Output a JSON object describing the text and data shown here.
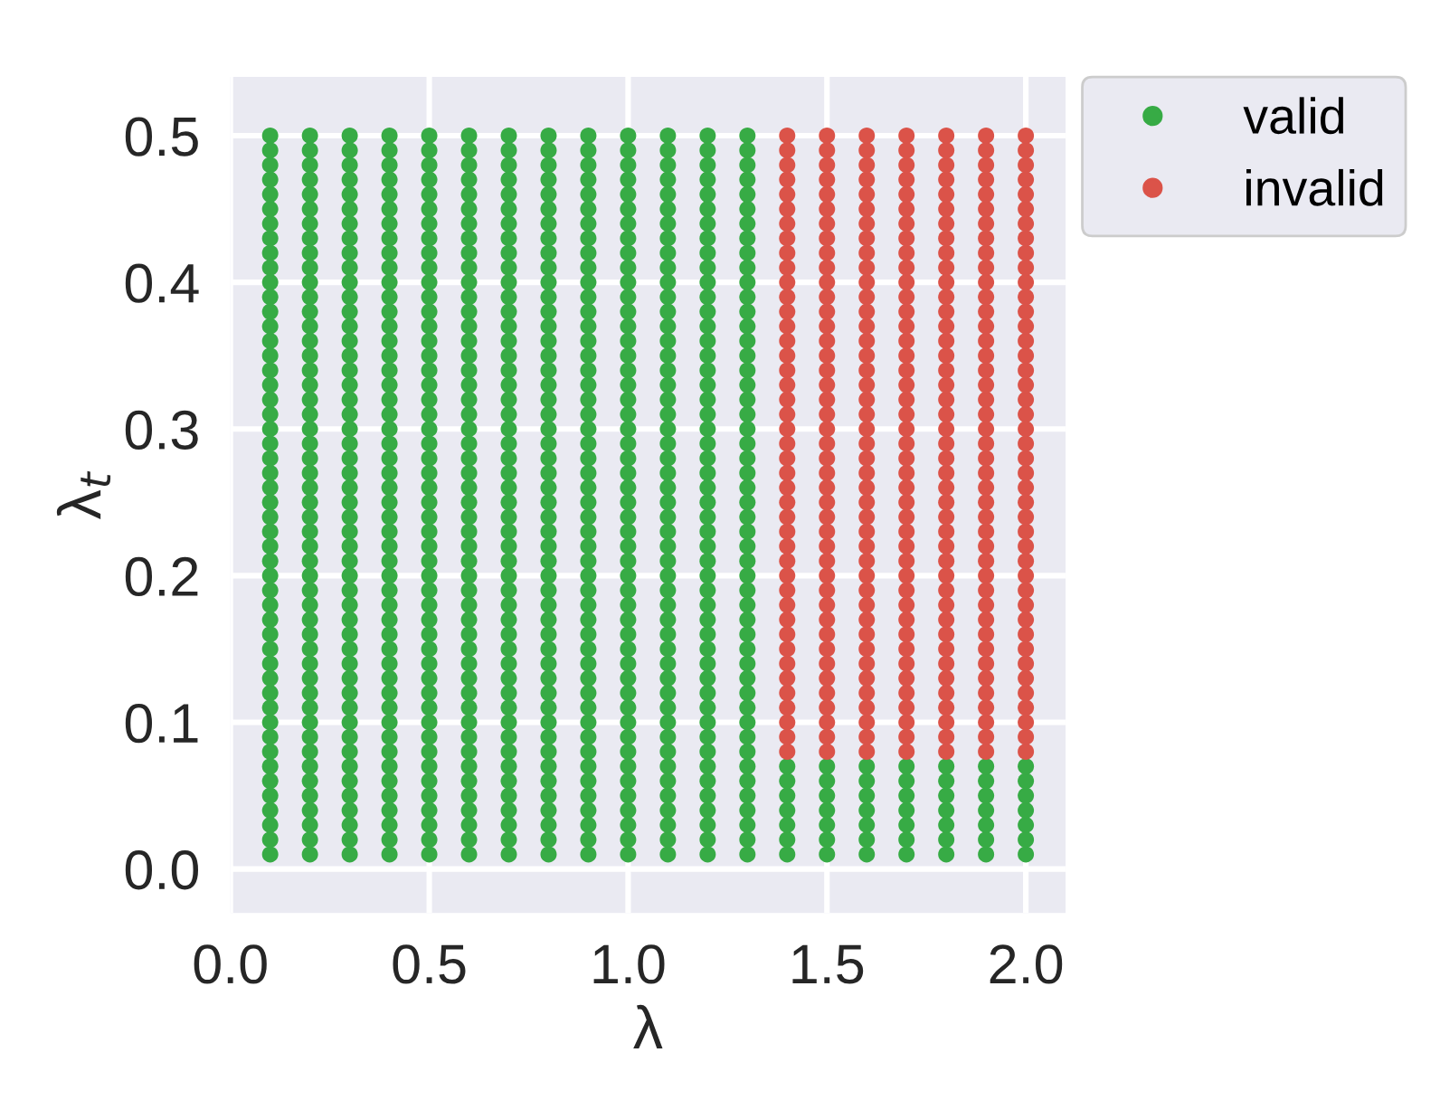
{
  "chart_data": {
    "type": "scatter",
    "xlabel": "λ",
    "ylabel": "λ$_{t}$",
    "xlim": [
      0.0,
      2.1
    ],
    "ylim": [
      -0.03,
      0.54
    ],
    "xticks": [
      {
        "value": 0,
        "label": "0.0"
      },
      0.5,
      {
        "value": 1,
        "label": "1.0"
      },
      1.5,
      {
        "value": 2,
        "label": "2.0"
      }
    ],
    "yticks": [
      {
        "value": 0,
        "label": "0.0"
      },
      0.1,
      0.2,
      0.3,
      0.4,
      0.5
    ],
    "grid": true,
    "legend": "right",
    "marker": "circle",
    "series": [
      {
        "name": "valid",
        "color": "#37ab45",
        "x": [
          0.1,
          0.1,
          0.1,
          0.1,
          0.1,
          0.1,
          0.1,
          0.1,
          0.1,
          0.1,
          0.1,
          0.1,
          0.1,
          0.1,
          0.1,
          0.1,
          0.1,
          0.1,
          0.1,
          0.1,
          0.1,
          0.1,
          0.1,
          0.1,
          0.1,
          0.1,
          0.1,
          0.1,
          0.1,
          0.1,
          0.1,
          0.1,
          0.1,
          0.1,
          0.1,
          0.1,
          0.1,
          0.1,
          0.1,
          0.1,
          0.1,
          0.1,
          0.1,
          0.1,
          0.1,
          0.1,
          0.1,
          0.1,
          0.1,
          0.1,
          0.2,
          0.2,
          0.2,
          0.2,
          0.2,
          0.2,
          0.2,
          0.2,
          0.2,
          0.2,
          0.2,
          0.2,
          0.2,
          0.2,
          0.2,
          0.2,
          0.2,
          0.2,
          0.2,
          0.2,
          0.2,
          0.2,
          0.2,
          0.2,
          0.2,
          0.2,
          0.2,
          0.2,
          0.2,
          0.2,
          0.2,
          0.2,
          0.2,
          0.2,
          0.2,
          0.2,
          0.2,
          0.2,
          0.2,
          0.2,
          0.2,
          0.2,
          0.2,
          0.2,
          0.2,
          0.2,
          0.2,
          0.2,
          0.2,
          0.2,
          0.3,
          0.3,
          0.3,
          0.3,
          0.3,
          0.3,
          0.3,
          0.3,
          0.3,
          0.3,
          0.3,
          0.3,
          0.3,
          0.3,
          0.3,
          0.3,
          0.3,
          0.3,
          0.3,
          0.3,
          0.3,
          0.3,
          0.3,
          0.3,
          0.3,
          0.3,
          0.3,
          0.3,
          0.3,
          0.3,
          0.3,
          0.3,
          0.3,
          0.3,
          0.3,
          0.3,
          0.3,
          0.3,
          0.3,
          0.3,
          0.3,
          0.3,
          0.3,
          0.3,
          0.3,
          0.3,
          0.3,
          0.3,
          0.3,
          0.3,
          0.4,
          0.4,
          0.4,
          0.4,
          0.4,
          0.4,
          0.4,
          0.4,
          0.4,
          0.4,
          0.4,
          0.4,
          0.4,
          0.4,
          0.4,
          0.4,
          0.4,
          0.4,
          0.4,
          0.4,
          0.4,
          0.4,
          0.4,
          0.4,
          0.4,
          0.4,
          0.4,
          0.4,
          0.4,
          0.4,
          0.4,
          0.4,
          0.4,
          0.4,
          0.4,
          0.4,
          0.4,
          0.4,
          0.4,
          0.4,
          0.4,
          0.4,
          0.4,
          0.4,
          0.4,
          0.4,
          0.4,
          0.4,
          0.4,
          0.4,
          0.5,
          0.5,
          0.5,
          0.5,
          0.5,
          0.5,
          0.5,
          0.5,
          0.5,
          0.5,
          0.5,
          0.5,
          0.5,
          0.5,
          0.5,
          0.5,
          0.5,
          0.5,
          0.5,
          0.5,
          0.5,
          0.5,
          0.5,
          0.5,
          0.5,
          0.5,
          0.5,
          0.5,
          0.5,
          0.5,
          0.5,
          0.5,
          0.5,
          0.5,
          0.5,
          0.5,
          0.5,
          0.5,
          0.5,
          0.5,
          0.5,
          0.5,
          0.5,
          0.5,
          0.5,
          0.5,
          0.5,
          0.5,
          0.5,
          0.5,
          0.6,
          0.6,
          0.6,
          0.6,
          0.6,
          0.6,
          0.6,
          0.6,
          0.6,
          0.6,
          0.6,
          0.6,
          0.6,
          0.6,
          0.6,
          0.6,
          0.6,
          0.6,
          0.6,
          0.6,
          0.6,
          0.6,
          0.6,
          0.6,
          0.6,
          0.6,
          0.6,
          0.6,
          0.6,
          0.6,
          0.6,
          0.6,
          0.6,
          0.6,
          0.6,
          0.6,
          0.6,
          0.6,
          0.6,
          0.6,
          0.6,
          0.6,
          0.6,
          0.6,
          0.6,
          0.6,
          0.6,
          0.6,
          0.6,
          0.6,
          0.7,
          0.7,
          0.7,
          0.7,
          0.7,
          0.7,
          0.7,
          0.7,
          0.7,
          0.7,
          0.7,
          0.7,
          0.7,
          0.7,
          0.7,
          0.7,
          0.7,
          0.7,
          0.7,
          0.7,
          0.7,
          0.7,
          0.7,
          0.7,
          0.7,
          0.7,
          0.7,
          0.7,
          0.7,
          0.7,
          0.7,
          0.7,
          0.7,
          0.7,
          0.7,
          0.7,
          0.7,
          0.7,
          0.7,
          0.7,
          0.7,
          0.7,
          0.7,
          0.7,
          0.7,
          0.7,
          0.7,
          0.7,
          0.7,
          0.7,
          0.8,
          0.8,
          0.8,
          0.8,
          0.8,
          0.8,
          0.8,
          0.8,
          0.8,
          0.8,
          0.8,
          0.8,
          0.8,
          0.8,
          0.8,
          0.8,
          0.8,
          0.8,
          0.8,
          0.8,
          0.8,
          0.8,
          0.8,
          0.8,
          0.8,
          0.8,
          0.8,
          0.8,
          0.8,
          0.8,
          0.8,
          0.8,
          0.8,
          0.8,
          0.8,
          0.8,
          0.8,
          0.8,
          0.8,
          0.8,
          0.8,
          0.8,
          0.8,
          0.8,
          0.8,
          0.8,
          0.8,
          0.8,
          0.8,
          0.8,
          0.9,
          0.9,
          0.9,
          0.9,
          0.9,
          0.9,
          0.9,
          0.9,
          0.9,
          0.9,
          0.9,
          0.9,
          0.9,
          0.9,
          0.9,
          0.9,
          0.9,
          0.9,
          0.9,
          0.9,
          0.9,
          0.9,
          0.9,
          0.9,
          0.9,
          0.9,
          0.9,
          0.9,
          0.9,
          0.9,
          0.9,
          0.9,
          0.9,
          0.9,
          0.9,
          0.9,
          0.9,
          0.9,
          0.9,
          0.9,
          0.9,
          0.9,
          0.9,
          0.9,
          0.9,
          0.9,
          0.9,
          0.9,
          0.9,
          0.9,
          1.0,
          1.0,
          1.0,
          1.0,
          1.0,
          1.0,
          1.0,
          1.0,
          1.0,
          1.0,
          1.0,
          1.0,
          1.0,
          1.0,
          1.0,
          1.0,
          1.0,
          1.0,
          1.0,
          1.0,
          1.0,
          1.0,
          1.0,
          1.0,
          1.0,
          1.0,
          1.0,
          1.0,
          1.0,
          1.0,
          1.0,
          1.0,
          1.0,
          1.0,
          1.0,
          1.0,
          1.0,
          1.0,
          1.0,
          1.0,
          1.0,
          1.0,
          1.0,
          1.0,
          1.0,
          1.0,
          1.0,
          1.0,
          1.0,
          1.0,
          1.1,
          1.1,
          1.1,
          1.1,
          1.1,
          1.1,
          1.1,
          1.1,
          1.1,
          1.1,
          1.1,
          1.1,
          1.1,
          1.1,
          1.1,
          1.1,
          1.1,
          1.1,
          1.1,
          1.1,
          1.1,
          1.1,
          1.1,
          1.1,
          1.1,
          1.1,
          1.1,
          1.1,
          1.1,
          1.1,
          1.1,
          1.1,
          1.1,
          1.1,
          1.1,
          1.1,
          1.1,
          1.1,
          1.1,
          1.1,
          1.1,
          1.1,
          1.1,
          1.1,
          1.1,
          1.1,
          1.1,
          1.1,
          1.1,
          1.1,
          1.2,
          1.2,
          1.2,
          1.2,
          1.2,
          1.2,
          1.2,
          1.2,
          1.2,
          1.2,
          1.2,
          1.2,
          1.2,
          1.2,
          1.2,
          1.2,
          1.2,
          1.2,
          1.2,
          1.2,
          1.2,
          1.2,
          1.2,
          1.2,
          1.2,
          1.2,
          1.2,
          1.2,
          1.2,
          1.2,
          1.2,
          1.2,
          1.2,
          1.2,
          1.2,
          1.2,
          1.2,
          1.2,
          1.2,
          1.2,
          1.2,
          1.2,
          1.2,
          1.2,
          1.2,
          1.2,
          1.2,
          1.2,
          1.2,
          1.2,
          1.3,
          1.3,
          1.3,
          1.3,
          1.3,
          1.3,
          1.3,
          1.3,
          1.3,
          1.3,
          1.3,
          1.3,
          1.3,
          1.3,
          1.3,
          1.3,
          1.3,
          1.3,
          1.3,
          1.3,
          1.3,
          1.3,
          1.3,
          1.3,
          1.3,
          1.3,
          1.3,
          1.3,
          1.3,
          1.3,
          1.3,
          1.3,
          1.3,
          1.3,
          1.3,
          1.3,
          1.3,
          1.3,
          1.3,
          1.3,
          1.3,
          1.3,
          1.3,
          1.3,
          1.3,
          1.3,
          1.3,
          1.3,
          1.3,
          1.3,
          1.4,
          1.4,
          1.4,
          1.4,
          1.4,
          1.4,
          1.4,
          1.5,
          1.5,
          1.5,
          1.5,
          1.5,
          1.5,
          1.5,
          1.6,
          1.6,
          1.6,
          1.6,
          1.6,
          1.6,
          1.6,
          1.7,
          1.7,
          1.7,
          1.7,
          1.7,
          1.7,
          1.7,
          1.8,
          1.8,
          1.8,
          1.8,
          1.8,
          1.8,
          1.8,
          1.9,
          1.9,
          1.9,
          1.9,
          1.9,
          1.9,
          1.9,
          2.0,
          2.0,
          2.0,
          2.0,
          2.0,
          2.0,
          2.0
        ],
        "values": [
          0.01,
          0.02,
          0.03,
          0.04,
          0.05,
          0.06,
          0.07,
          0.08,
          0.09,
          0.1,
          0.11,
          0.12,
          0.13,
          0.14,
          0.15,
          0.16,
          0.17,
          0.18,
          0.19,
          0.2,
          0.21,
          0.22,
          0.23,
          0.24,
          0.25,
          0.26,
          0.27,
          0.28,
          0.29,
          0.3,
          0.31,
          0.32,
          0.33,
          0.34,
          0.35,
          0.36,
          0.37,
          0.38,
          0.39,
          0.4,
          0.41,
          0.42,
          0.43,
          0.44,
          0.45,
          0.46,
          0.47,
          0.48,
          0.49,
          0.5,
          0.01,
          0.02,
          0.03,
          0.04,
          0.05,
          0.06,
          0.07,
          0.08,
          0.09,
          0.1,
          0.11,
          0.12,
          0.13,
          0.14,
          0.15,
          0.16,
          0.17,
          0.18,
          0.19,
          0.2,
          0.21,
          0.22,
          0.23,
          0.24,
          0.25,
          0.26,
          0.27,
          0.28,
          0.29,
          0.3,
          0.31,
          0.32,
          0.33,
          0.34,
          0.35,
          0.36,
          0.37,
          0.38,
          0.39,
          0.4,
          0.41,
          0.42,
          0.43,
          0.44,
          0.45,
          0.46,
          0.47,
          0.48,
          0.49,
          0.5,
          0.01,
          0.02,
          0.03,
          0.04,
          0.05,
          0.06,
          0.07,
          0.08,
          0.09,
          0.1,
          0.11,
          0.12,
          0.13,
          0.14,
          0.15,
          0.16,
          0.17,
          0.18,
          0.19,
          0.2,
          0.21,
          0.22,
          0.23,
          0.24,
          0.25,
          0.26,
          0.27,
          0.28,
          0.29,
          0.3,
          0.31,
          0.32,
          0.33,
          0.34,
          0.35,
          0.36,
          0.37,
          0.38,
          0.39,
          0.4,
          0.41,
          0.42,
          0.43,
          0.44,
          0.45,
          0.46,
          0.47,
          0.48,
          0.49,
          0.5,
          0.01,
          0.02,
          0.03,
          0.04,
          0.05,
          0.06,
          0.07,
          0.08,
          0.09,
          0.1,
          0.11,
          0.12,
          0.13,
          0.14,
          0.15,
          0.16,
          0.17,
          0.18,
          0.19,
          0.2,
          0.21,
          0.22,
          0.23,
          0.24,
          0.25,
          0.26,
          0.27,
          0.28,
          0.29,
          0.3,
          0.31,
          0.32,
          0.33,
          0.34,
          0.35,
          0.36,
          0.37,
          0.38,
          0.39,
          0.4,
          0.41,
          0.42,
          0.43,
          0.44,
          0.45,
          0.46,
          0.47,
          0.48,
          0.49,
          0.5,
          0.01,
          0.02,
          0.03,
          0.04,
          0.05,
          0.06,
          0.07,
          0.08,
          0.09,
          0.1,
          0.11,
          0.12,
          0.13,
          0.14,
          0.15,
          0.16,
          0.17,
          0.18,
          0.19,
          0.2,
          0.21,
          0.22,
          0.23,
          0.24,
          0.25,
          0.26,
          0.27,
          0.28,
          0.29,
          0.3,
          0.31,
          0.32,
          0.33,
          0.34,
          0.35,
          0.36,
          0.37,
          0.38,
          0.39,
          0.4,
          0.41,
          0.42,
          0.43,
          0.44,
          0.45,
          0.46,
          0.47,
          0.48,
          0.49,
          0.5,
          0.01,
          0.02,
          0.03,
          0.04,
          0.05,
          0.06,
          0.07,
          0.08,
          0.09,
          0.1,
          0.11,
          0.12,
          0.13,
          0.14,
          0.15,
          0.16,
          0.17,
          0.18,
          0.19,
          0.2,
          0.21,
          0.22,
          0.23,
          0.24,
          0.25,
          0.26,
          0.27,
          0.28,
          0.29,
          0.3,
          0.31,
          0.32,
          0.33,
          0.34,
          0.35,
          0.36,
          0.37,
          0.38,
          0.39,
          0.4,
          0.41,
          0.42,
          0.43,
          0.44,
          0.45,
          0.46,
          0.47,
          0.48,
          0.49,
          0.5,
          0.01,
          0.02,
          0.03,
          0.04,
          0.05,
          0.06,
          0.07,
          0.08,
          0.09,
          0.1,
          0.11,
          0.12,
          0.13,
          0.14,
          0.15,
          0.16,
          0.17,
          0.18,
          0.19,
          0.2,
          0.21,
          0.22,
          0.23,
          0.24,
          0.25,
          0.26,
          0.27,
          0.28,
          0.29,
          0.3,
          0.31,
          0.32,
          0.33,
          0.34,
          0.35,
          0.36,
          0.37,
          0.38,
          0.39,
          0.4,
          0.41,
          0.42,
          0.43,
          0.44,
          0.45,
          0.46,
          0.47,
          0.48,
          0.49,
          0.5,
          0.01,
          0.02,
          0.03,
          0.04,
          0.05,
          0.06,
          0.07,
          0.08,
          0.09,
          0.1,
          0.11,
          0.12,
          0.13,
          0.14,
          0.15,
          0.16,
          0.17,
          0.18,
          0.19,
          0.2,
          0.21,
          0.22,
          0.23,
          0.24,
          0.25,
          0.26,
          0.27,
          0.28,
          0.29,
          0.3,
          0.31,
          0.32,
          0.33,
          0.34,
          0.35,
          0.36,
          0.37,
          0.38,
          0.39,
          0.4,
          0.41,
          0.42,
          0.43,
          0.44,
          0.45,
          0.46,
          0.47,
          0.48,
          0.49,
          0.5,
          0.01,
          0.02,
          0.03,
          0.04,
          0.05,
          0.06,
          0.07,
          0.08,
          0.09,
          0.1,
          0.11,
          0.12,
          0.13,
          0.14,
          0.15,
          0.16,
          0.17,
          0.18,
          0.19,
          0.2,
          0.21,
          0.22,
          0.23,
          0.24,
          0.25,
          0.26,
          0.27,
          0.28,
          0.29,
          0.3,
          0.31,
          0.32,
          0.33,
          0.34,
          0.35,
          0.36,
          0.37,
          0.38,
          0.39,
          0.4,
          0.41,
          0.42,
          0.43,
          0.44,
          0.45,
          0.46,
          0.47,
          0.48,
          0.49,
          0.5,
          0.01,
          0.02,
          0.03,
          0.04,
          0.05,
          0.06,
          0.07,
          0.08,
          0.09,
          0.1,
          0.11,
          0.12,
          0.13,
          0.14,
          0.15,
          0.16,
          0.17,
          0.18,
          0.19,
          0.2,
          0.21,
          0.22,
          0.23,
          0.24,
          0.25,
          0.26,
          0.27,
          0.28,
          0.29,
          0.3,
          0.31,
          0.32,
          0.33,
          0.34,
          0.35,
          0.36,
          0.37,
          0.38,
          0.39,
          0.4,
          0.41,
          0.42,
          0.43,
          0.44,
          0.45,
          0.46,
          0.47,
          0.48,
          0.49,
          0.5,
          0.01,
          0.02,
          0.03,
          0.04,
          0.05,
          0.06,
          0.07,
          0.08,
          0.09,
          0.1,
          0.11,
          0.12,
          0.13,
          0.14,
          0.15,
          0.16,
          0.17,
          0.18,
          0.19,
          0.2,
          0.21,
          0.22,
          0.23,
          0.24,
          0.25,
          0.26,
          0.27,
          0.28,
          0.29,
          0.3,
          0.31,
          0.32,
          0.33,
          0.34,
          0.35,
          0.36,
          0.37,
          0.38,
          0.39,
          0.4,
          0.41,
          0.42,
          0.43,
          0.44,
          0.45,
          0.46,
          0.47,
          0.48,
          0.49,
          0.5,
          0.01,
          0.02,
          0.03,
          0.04,
          0.05,
          0.06,
          0.07,
          0.08,
          0.09,
          0.1,
          0.11,
          0.12,
          0.13,
          0.14,
          0.15,
          0.16,
          0.17,
          0.18,
          0.19,
          0.2,
          0.21,
          0.22,
          0.23,
          0.24,
          0.25,
          0.26,
          0.27,
          0.28,
          0.29,
          0.3,
          0.31,
          0.32,
          0.33,
          0.34,
          0.35,
          0.36,
          0.37,
          0.38,
          0.39,
          0.4,
          0.41,
          0.42,
          0.43,
          0.44,
          0.45,
          0.46,
          0.47,
          0.48,
          0.49,
          0.5,
          0.01,
          0.02,
          0.03,
          0.04,
          0.05,
          0.06,
          0.07,
          0.08,
          0.09,
          0.1,
          0.11,
          0.12,
          0.13,
          0.14,
          0.15,
          0.16,
          0.17,
          0.18,
          0.19,
          0.2,
          0.21,
          0.22,
          0.23,
          0.24,
          0.25,
          0.26,
          0.27,
          0.28,
          0.29,
          0.3,
          0.31,
          0.32,
          0.33,
          0.34,
          0.35,
          0.36,
          0.37,
          0.38,
          0.39,
          0.4,
          0.41,
          0.42,
          0.43,
          0.44,
          0.45,
          0.46,
          0.47,
          0.48,
          0.49,
          0.5,
          0.01,
          0.02,
          0.03,
          0.04,
          0.05,
          0.06,
          0.07,
          0.01,
          0.02,
          0.03,
          0.04,
          0.05,
          0.06,
          0.07,
          0.01,
          0.02,
          0.03,
          0.04,
          0.05,
          0.06,
          0.07,
          0.01,
          0.02,
          0.03,
          0.04,
          0.05,
          0.06,
          0.07,
          0.01,
          0.02,
          0.03,
          0.04,
          0.05,
          0.06,
          0.07,
          0.01,
          0.02,
          0.03,
          0.04,
          0.05,
          0.06,
          0.07,
          0.01,
          0.02,
          0.03,
          0.04,
          0.05,
          0.06,
          0.07
        ]
      },
      {
        "name": "invalid",
        "color": "#db5349",
        "x": [
          1.4,
          1.4,
          1.4,
          1.4,
          1.4,
          1.4,
          1.4,
          1.4,
          1.4,
          1.4,
          1.4,
          1.4,
          1.4,
          1.4,
          1.4,
          1.4,
          1.4,
          1.4,
          1.4,
          1.4,
          1.4,
          1.4,
          1.4,
          1.4,
          1.4,
          1.4,
          1.4,
          1.4,
          1.4,
          1.4,
          1.4,
          1.4,
          1.4,
          1.4,
          1.4,
          1.4,
          1.4,
          1.4,
          1.4,
          1.4,
          1.4,
          1.4,
          1.4,
          1.5,
          1.5,
          1.5,
          1.5,
          1.5,
          1.5,
          1.5,
          1.5,
          1.5,
          1.5,
          1.5,
          1.5,
          1.5,
          1.5,
          1.5,
          1.5,
          1.5,
          1.5,
          1.5,
          1.5,
          1.5,
          1.5,
          1.5,
          1.5,
          1.5,
          1.5,
          1.5,
          1.5,
          1.5,
          1.5,
          1.5,
          1.5,
          1.5,
          1.5,
          1.5,
          1.5,
          1.5,
          1.5,
          1.5,
          1.5,
          1.5,
          1.5,
          1.5,
          1.6,
          1.6,
          1.6,
          1.6,
          1.6,
          1.6,
          1.6,
          1.6,
          1.6,
          1.6,
          1.6,
          1.6,
          1.6,
          1.6,
          1.6,
          1.6,
          1.6,
          1.6,
          1.6,
          1.6,
          1.6,
          1.6,
          1.6,
          1.6,
          1.6,
          1.6,
          1.6,
          1.6,
          1.6,
          1.6,
          1.6,
          1.6,
          1.6,
          1.6,
          1.6,
          1.6,
          1.6,
          1.6,
          1.6,
          1.6,
          1.6,
          1.6,
          1.6,
          1.7,
          1.7,
          1.7,
          1.7,
          1.7,
          1.7,
          1.7,
          1.7,
          1.7,
          1.7,
          1.7,
          1.7,
          1.7,
          1.7,
          1.7,
          1.7,
          1.7,
          1.7,
          1.7,
          1.7,
          1.7,
          1.7,
          1.7,
          1.7,
          1.7,
          1.7,
          1.7,
          1.7,
          1.7,
          1.7,
          1.7,
          1.7,
          1.7,
          1.7,
          1.7,
          1.7,
          1.7,
          1.7,
          1.7,
          1.7,
          1.7,
          1.7,
          1.7,
          1.8,
          1.8,
          1.8,
          1.8,
          1.8,
          1.8,
          1.8,
          1.8,
          1.8,
          1.8,
          1.8,
          1.8,
          1.8,
          1.8,
          1.8,
          1.8,
          1.8,
          1.8,
          1.8,
          1.8,
          1.8,
          1.8,
          1.8,
          1.8,
          1.8,
          1.8,
          1.8,
          1.8,
          1.8,
          1.8,
          1.8,
          1.8,
          1.8,
          1.8,
          1.8,
          1.8,
          1.8,
          1.8,
          1.8,
          1.8,
          1.8,
          1.8,
          1.8,
          1.9,
          1.9,
          1.9,
          1.9,
          1.9,
          1.9,
          1.9,
          1.9,
          1.9,
          1.9,
          1.9,
          1.9,
          1.9,
          1.9,
          1.9,
          1.9,
          1.9,
          1.9,
          1.9,
          1.9,
          1.9,
          1.9,
          1.9,
          1.9,
          1.9,
          1.9,
          1.9,
          1.9,
          1.9,
          1.9,
          1.9,
          1.9,
          1.9,
          1.9,
          1.9,
          1.9,
          1.9,
          1.9,
          1.9,
          1.9,
          1.9,
          1.9,
          1.9,
          2.0,
          2.0,
          2.0,
          2.0,
          2.0,
          2.0,
          2.0,
          2.0,
          2.0,
          2.0,
          2.0,
          2.0,
          2.0,
          2.0,
          2.0,
          2.0,
          2.0,
          2.0,
          2.0,
          2.0,
          2.0,
          2.0,
          2.0,
          2.0,
          2.0,
          2.0,
          2.0,
          2.0,
          2.0,
          2.0,
          2.0,
          2.0,
          2.0,
          2.0,
          2.0,
          2.0,
          2.0,
          2.0,
          2.0,
          2.0,
          2.0,
          2.0,
          2.0
        ],
        "values": [
          0.08,
          0.09,
          0.1,
          0.11,
          0.12,
          0.13,
          0.14,
          0.15,
          0.16,
          0.17,
          0.18,
          0.19,
          0.2,
          0.21,
          0.22,
          0.23,
          0.24,
          0.25,
          0.26,
          0.27,
          0.28,
          0.29,
          0.3,
          0.31,
          0.32,
          0.33,
          0.34,
          0.35,
          0.36,
          0.37,
          0.38,
          0.39,
          0.4,
          0.41,
          0.42,
          0.43,
          0.44,
          0.45,
          0.46,
          0.47,
          0.48,
          0.49,
          0.5,
          0.08,
          0.09,
          0.1,
          0.11,
          0.12,
          0.13,
          0.14,
          0.15,
          0.16,
          0.17,
          0.18,
          0.19,
          0.2,
          0.21,
          0.22,
          0.23,
          0.24,
          0.25,
          0.26,
          0.27,
          0.28,
          0.29,
          0.3,
          0.31,
          0.32,
          0.33,
          0.34,
          0.35,
          0.36,
          0.37,
          0.38,
          0.39,
          0.4,
          0.41,
          0.42,
          0.43,
          0.44,
          0.45,
          0.46,
          0.47,
          0.48,
          0.49,
          0.5,
          0.08,
          0.09,
          0.1,
          0.11,
          0.12,
          0.13,
          0.14,
          0.15,
          0.16,
          0.17,
          0.18,
          0.19,
          0.2,
          0.21,
          0.22,
          0.23,
          0.24,
          0.25,
          0.26,
          0.27,
          0.28,
          0.29,
          0.3,
          0.31,
          0.32,
          0.33,
          0.34,
          0.35,
          0.36,
          0.37,
          0.38,
          0.39,
          0.4,
          0.41,
          0.42,
          0.43,
          0.44,
          0.45,
          0.46,
          0.47,
          0.48,
          0.49,
          0.5,
          0.08,
          0.09,
          0.1,
          0.11,
          0.12,
          0.13,
          0.14,
          0.15,
          0.16,
          0.17,
          0.18,
          0.19,
          0.2,
          0.21,
          0.22,
          0.23,
          0.24,
          0.25,
          0.26,
          0.27,
          0.28,
          0.29,
          0.3,
          0.31,
          0.32,
          0.33,
          0.34,
          0.35,
          0.36,
          0.37,
          0.38,
          0.39,
          0.4,
          0.41,
          0.42,
          0.43,
          0.44,
          0.45,
          0.46,
          0.47,
          0.48,
          0.49,
          0.5,
          0.08,
          0.09,
          0.1,
          0.11,
          0.12,
          0.13,
          0.14,
          0.15,
          0.16,
          0.17,
          0.18,
          0.19,
          0.2,
          0.21,
          0.22,
          0.23,
          0.24,
          0.25,
          0.26,
          0.27,
          0.28,
          0.29,
          0.3,
          0.31,
          0.32,
          0.33,
          0.34,
          0.35,
          0.36,
          0.37,
          0.38,
          0.39,
          0.4,
          0.41,
          0.42,
          0.43,
          0.44,
          0.45,
          0.46,
          0.47,
          0.48,
          0.49,
          0.5,
          0.08,
          0.09,
          0.1,
          0.11,
          0.12,
          0.13,
          0.14,
          0.15,
          0.16,
          0.17,
          0.18,
          0.19,
          0.2,
          0.21,
          0.22,
          0.23,
          0.24,
          0.25,
          0.26,
          0.27,
          0.28,
          0.29,
          0.3,
          0.31,
          0.32,
          0.33,
          0.34,
          0.35,
          0.36,
          0.37,
          0.38,
          0.39,
          0.4,
          0.41,
          0.42,
          0.43,
          0.44,
          0.45,
          0.46,
          0.47,
          0.48,
          0.49,
          0.5,
          0.08,
          0.09,
          0.1,
          0.11,
          0.12,
          0.13,
          0.14,
          0.15,
          0.16,
          0.17,
          0.18,
          0.19,
          0.2,
          0.21,
          0.22,
          0.23,
          0.24,
          0.25,
          0.26,
          0.27,
          0.28,
          0.29,
          0.3,
          0.31,
          0.32,
          0.33,
          0.34,
          0.35,
          0.36,
          0.37,
          0.38,
          0.39,
          0.4,
          0.41,
          0.42,
          0.43,
          0.44,
          0.45,
          0.46,
          0.47,
          0.48,
          0.49,
          0.5
        ]
      }
    ]
  }
}
